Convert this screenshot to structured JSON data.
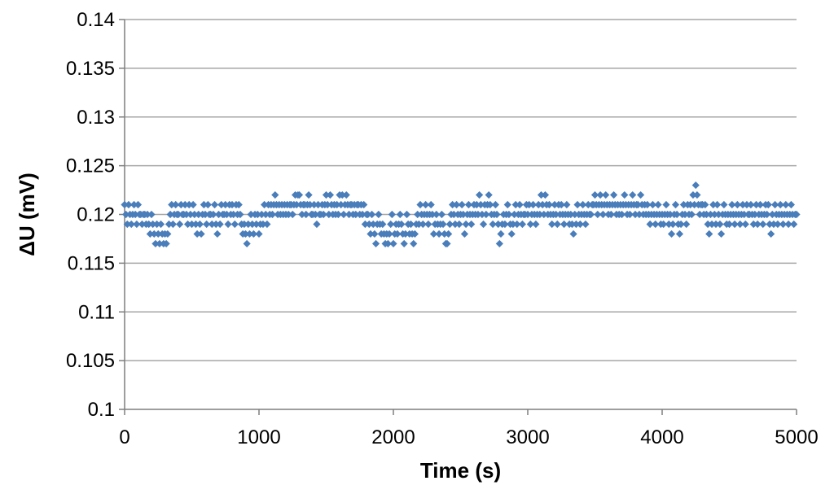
{
  "chart_data": {
    "type": "scatter",
    "title": "",
    "xlabel": "Time (s)",
    "ylabel": "ΔU (mV)",
    "xlim": [
      0,
      5000
    ],
    "ylim": [
      0.1,
      0.14
    ],
    "x_ticks": [
      0,
      1000,
      2000,
      3000,
      4000,
      5000
    ],
    "x_tick_labels": [
      "0",
      "1000",
      "2000",
      "3000",
      "4000",
      "5000"
    ],
    "y_ticks": [
      0.1,
      0.105,
      0.11,
      0.115,
      0.12,
      0.125,
      0.13,
      0.135,
      0.14
    ],
    "y_tick_labels": [
      "0.1",
      "0.105",
      "0.11",
      "0.115",
      "0.12",
      "0.125",
      "0.13",
      "0.135",
      "0.14"
    ],
    "grid": "horizontal",
    "legend": "none",
    "marker": "diamond",
    "marker_color": "#4a7ebb",
    "sampling_interval_s": 10,
    "series": [
      {
        "x_start": 0,
        "x_step": 10,
        "values": [
          0.121,
          0.12,
          0.119,
          0.121,
          0.12,
          0.119,
          0.12,
          0.121,
          0.12,
          0.119,
          0.121,
          0.12,
          0.12,
          0.119,
          0.12,
          0.12,
          0.119,
          0.12,
          0.119,
          0.118,
          0.12,
          0.119,
          0.118,
          0.117,
          0.119,
          0.118,
          0.117,
          0.119,
          0.118,
          0.117,
          0.118,
          0.117,
          0.118,
          0.119,
          0.12,
          0.121,
          0.119,
          0.12,
          0.121,
          0.12,
          0.12,
          0.119,
          0.121,
          0.12,
          0.12,
          0.121,
          0.12,
          0.119,
          0.121,
          0.12,
          0.119,
          0.121,
          0.12,
          0.119,
          0.118,
          0.12,
          0.119,
          0.118,
          0.12,
          0.121,
          0.12,
          0.119,
          0.121,
          0.12,
          0.12,
          0.119,
          0.12,
          0.121,
          0.119,
          0.118,
          0.12,
          0.119,
          0.121,
          0.12,
          0.12,
          0.121,
          0.12,
          0.119,
          0.121,
          0.12,
          0.121,
          0.12,
          0.119,
          0.121,
          0.12,
          0.121,
          0.12,
          0.119,
          0.118,
          0.119,
          0.118,
          0.117,
          0.119,
          0.118,
          0.12,
          0.119,
          0.118,
          0.12,
          0.119,
          0.12,
          0.118,
          0.119,
          0.12,
          0.119,
          0.121,
          0.12,
          0.119,
          0.121,
          0.12,
          0.121,
          0.12,
          0.121,
          0.122,
          0.121,
          0.12,
          0.121,
          0.12,
          0.121,
          0.12,
          0.121,
          0.12,
          0.121,
          0.12,
          0.121,
          0.121,
          0.12,
          0.121,
          0.122,
          0.121,
          0.122,
          0.122,
          0.121,
          0.12,
          0.121,
          0.121,
          0.12,
          0.121,
          0.122,
          0.121,
          0.12,
          0.12,
          0.121,
          0.12,
          0.119,
          0.121,
          0.12,
          0.12,
          0.121,
          0.12,
          0.121,
          0.122,
          0.121,
          0.12,
          0.122,
          0.121,
          0.12,
          0.121,
          0.12,
          0.121,
          0.12,
          0.122,
          0.121,
          0.122,
          0.12,
          0.121,
          0.122,
          0.121,
          0.12,
          0.121,
          0.121,
          0.12,
          0.121,
          0.12,
          0.121,
          0.121,
          0.12,
          0.121,
          0.12,
          0.121,
          0.119,
          0.12,
          0.12,
          0.119,
          0.118,
          0.12,
          0.119,
          0.118,
          0.117,
          0.119,
          0.12,
          0.119,
          0.118,
          0.119,
          0.118,
          0.117,
          0.118,
          0.117,
          0.118,
          0.119,
          0.12,
          0.117,
          0.118,
          0.119,
          0.118,
          0.119,
          0.12,
          0.119,
          0.118,
          0.117,
          0.118,
          0.12,
          0.119,
          0.118,
          0.119,
          0.118,
          0.117,
          0.118,
          0.119,
          0.12,
          0.119,
          0.121,
          0.12,
          0.119,
          0.12,
          0.121,
          0.12,
          0.119,
          0.12,
          0.121,
          0.12,
          0.118,
          0.119,
          0.12,
          0.119,
          0.118,
          0.119,
          0.12,
          0.119,
          0.118,
          0.117,
          0.117,
          0.118,
          0.119,
          0.12,
          0.121,
          0.12,
          0.119,
          0.121,
          0.12,
          0.119,
          0.12,
          0.121,
          0.12,
          0.118,
          0.119,
          0.12,
          0.121,
          0.12,
          0.119,
          0.12,
          0.121,
          0.12,
          0.121,
          0.12,
          0.122,
          0.121,
          0.12,
          0.119,
          0.121,
          0.12,
          0.121,
          0.122,
          0.121,
          0.12,
          0.119,
          0.12,
          0.121,
          0.12,
          0.119,
          0.117,
          0.118,
          0.119,
          0.12,
          0.119,
          0.12,
          0.121,
          0.12,
          0.119,
          0.118,
          0.119,
          0.12,
          0.121,
          0.119,
          0.12,
          0.121,
          0.12,
          0.119,
          0.12,
          0.12,
          0.121,
          0.12,
          0.121,
          0.119,
          0.12,
          0.121,
          0.12,
          0.119,
          0.12,
          0.121,
          0.12,
          0.122,
          0.121,
          0.12,
          0.122,
          0.121,
          0.12,
          0.121,
          0.12,
          0.119,
          0.12,
          0.121,
          0.12,
          0.119,
          0.121,
          0.12,
          0.121,
          0.12,
          0.119,
          0.12,
          0.121,
          0.12,
          0.119,
          0.12,
          0.119,
          0.118,
          0.12,
          0.119,
          0.121,
          0.12,
          0.119,
          0.12,
          0.121,
          0.12,
          0.119,
          0.12,
          0.121,
          0.12,
          0.12,
          0.121,
          0.121,
          0.122,
          0.121,
          0.12,
          0.121,
          0.122,
          0.121,
          0.12,
          0.121,
          0.122,
          0.121,
          0.12,
          0.121,
          0.12,
          0.121,
          0.122,
          0.121,
          0.12,
          0.121,
          0.12,
          0.121,
          0.12,
          0.121,
          0.122,
          0.121,
          0.12,
          0.121,
          0.12,
          0.121,
          0.122,
          0.121,
          0.12,
          0.121,
          0.121,
          0.12,
          0.122,
          0.121,
          0.12,
          0.121,
          0.12,
          0.121,
          0.12,
          0.119,
          0.12,
          0.121,
          0.12,
          0.119,
          0.12,
          0.121,
          0.12,
          0.119,
          0.12,
          0.119,
          0.12,
          0.121,
          0.12,
          0.119,
          0.12,
          0.118,
          0.119,
          0.12,
          0.121,
          0.12,
          0.119,
          0.118,
          0.119,
          0.12,
          0.121,
          0.12,
          0.119,
          0.121,
          0.12,
          0.121,
          0.12,
          0.122,
          0.121,
          0.123,
          0.122,
          0.121,
          0.12,
          0.121,
          0.121,
          0.12,
          0.121,
          0.12,
          0.119,
          0.118,
          0.12,
          0.119,
          0.121,
          0.12,
          0.119,
          0.121,
          0.12,
          0.119,
          0.118,
          0.12,
          0.121,
          0.12,
          0.119,
          0.12,
          0.119,
          0.12,
          0.121,
          0.12,
          0.119,
          0.12,
          0.121,
          0.12,
          0.119,
          0.12,
          0.121,
          0.12,
          0.119,
          0.121,
          0.12,
          0.12,
          0.121,
          0.12,
          0.119,
          0.12,
          0.121,
          0.119,
          0.12,
          0.121,
          0.12,
          0.119,
          0.12,
          0.121,
          0.12,
          0.121,
          0.119,
          0.118,
          0.12,
          0.119,
          0.121,
          0.12,
          0.119,
          0.12,
          0.121,
          0.12,
          0.119,
          0.12,
          0.121,
          0.12,
          0.119,
          0.12,
          0.121,
          0.12,
          0.119,
          0.12,
          0.12
        ]
      }
    ]
  }
}
